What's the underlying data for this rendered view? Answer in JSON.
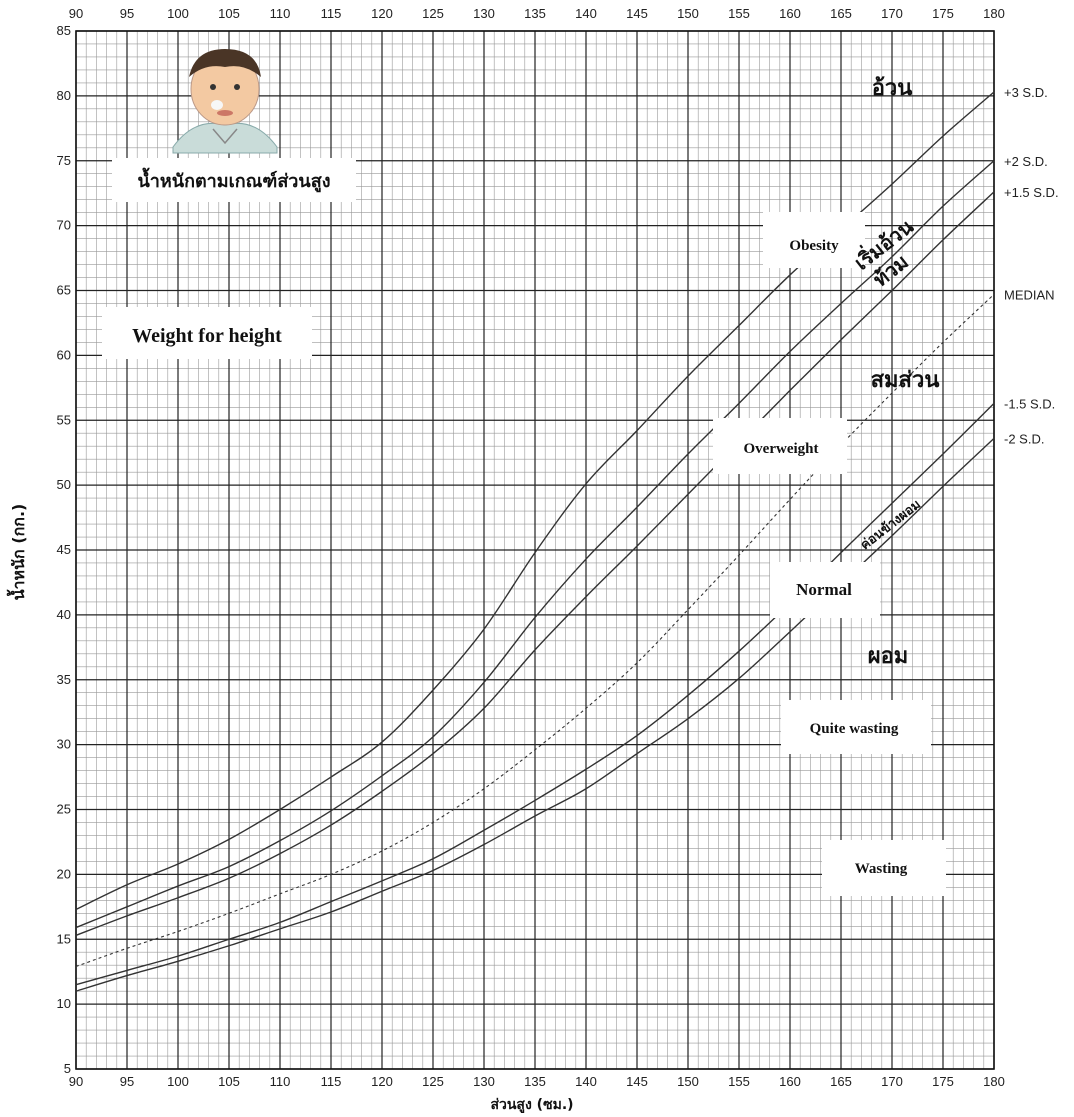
{
  "chart_data": {
    "type": "line",
    "title": "น้ำหนักตามเกณฑ์ส่วนสูง",
    "subtitle": "Weight for height",
    "xlabel": "ส่วนสูง (ซม.)",
    "ylabel": "น้ำหนัก (กก.)",
    "xlim": [
      90,
      180
    ],
    "ylim": [
      5,
      85
    ],
    "x_ticks": [
      90,
      95,
      100,
      105,
      110,
      115,
      120,
      125,
      130,
      135,
      140,
      145,
      150,
      155,
      160,
      165,
      170,
      175,
      180
    ],
    "y_ticks": [
      5,
      10,
      15,
      20,
      25,
      30,
      35,
      40,
      45,
      50,
      55,
      60,
      65,
      70,
      75,
      80,
      85
    ],
    "x_axis_top": true,
    "grid": true,
    "x": [
      90,
      95,
      100,
      105,
      110,
      115,
      120,
      125,
      130,
      135,
      140,
      145,
      150,
      155,
      160,
      165,
      170,
      175,
      180
    ],
    "series": [
      {
        "name": "+3 S.D.",
        "values": [
          17.3,
          19.2,
          20.8,
          22.7,
          25.0,
          27.5,
          30.2,
          34.2,
          38.9,
          44.8,
          50.1,
          54.2,
          58.4,
          62.3,
          66.2,
          69.7,
          73.2,
          76.9,
          80.3
        ]
      },
      {
        "name": "+2 S.D.",
        "values": [
          15.9,
          17.5,
          19.1,
          20.6,
          22.6,
          24.9,
          27.6,
          30.6,
          34.8,
          39.8,
          44.3,
          48.3,
          52.4,
          56.3,
          60.3,
          64.0,
          67.6,
          71.5,
          75.0
        ]
      },
      {
        "name": "+1.5 S.D.",
        "values": [
          15.3,
          16.8,
          18.2,
          19.7,
          21.6,
          23.8,
          26.4,
          29.3,
          32.8,
          37.3,
          41.4,
          45.3,
          49.3,
          53.3,
          57.3,
          61.2,
          65.0,
          68.9,
          72.6
        ]
      },
      {
        "name": "MEDIAN",
        "values": [
          12.9,
          14.3,
          15.6,
          17.0,
          18.5,
          20.0,
          21.8,
          24.0,
          26.6,
          29.6,
          32.8,
          36.3,
          40.4,
          44.6,
          48.9,
          53.1,
          57.1,
          61.0,
          64.7
        ]
      },
      {
        "name": "-1.5 S.D.",
        "values": [
          11.5,
          12.6,
          13.7,
          15.0,
          16.3,
          17.9,
          19.5,
          21.2,
          23.4,
          25.7,
          28.1,
          30.7,
          33.8,
          37.2,
          40.9,
          44.8,
          48.6,
          52.4,
          56.3
        ]
      },
      {
        "name": "-2 S.D.",
        "values": [
          11.0,
          12.2,
          13.3,
          14.5,
          15.8,
          17.1,
          18.7,
          20.3,
          22.3,
          24.5,
          26.6,
          29.3,
          32.0,
          35.1,
          38.7,
          42.4,
          46.1,
          49.9,
          53.6
        ]
      }
    ],
    "dashed_series": [
      "MEDIAN"
    ],
    "zone_labels": [
      "อ้วน",
      "เริ่มอ้วน",
      "ท้วม",
      "สมส่วน",
      "ค่อนข้างผอม",
      "ผอม"
    ],
    "box_labels": [
      "Obesity",
      "Overweight",
      "Normal",
      "Quite wasting",
      "Wasting"
    ],
    "line_color": "#333333",
    "grid_major_color": "#222222",
    "grid_minor_color": "#999999"
  }
}
